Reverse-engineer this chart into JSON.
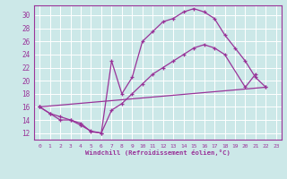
{
  "bg_color": "#cce8e8",
  "grid_color": "#ffffff",
  "line_color": "#993399",
  "xlabel": "Windchill (Refroidissement éolien,°C)",
  "xlim": [
    -0.5,
    23.5
  ],
  "ylim": [
    11.0,
    31.5
  ],
  "yticks": [
    12,
    14,
    16,
    18,
    20,
    22,
    24,
    26,
    28,
    30
  ],
  "xticks": [
    0,
    1,
    2,
    3,
    4,
    5,
    6,
    7,
    8,
    9,
    10,
    11,
    12,
    13,
    14,
    15,
    16,
    17,
    18,
    19,
    20,
    21,
    22,
    23
  ],
  "curve1_x": [
    0,
    1,
    2,
    3,
    4,
    5,
    6,
    7,
    8,
    9,
    10,
    11,
    12,
    13,
    14,
    15,
    16,
    17,
    18,
    19,
    20,
    21,
    22
  ],
  "curve1_y": [
    16,
    15,
    14,
    14,
    13.5,
    12.2,
    12.0,
    23.0,
    18.0,
    20.5,
    26.0,
    27.5,
    29.0,
    29.5,
    30.5,
    31.0,
    30.5,
    29.5,
    27.0,
    25.0,
    23.0,
    20.5,
    19.0
  ],
  "curve2_x": [
    0,
    22
  ],
  "curve2_y": [
    16.0,
    19.0
  ],
  "curve3_x": [
    0,
    1,
    2,
    3,
    4,
    5,
    6,
    7,
    8,
    9,
    10,
    11,
    12,
    13,
    14,
    15,
    16,
    17,
    18,
    20,
    21
  ],
  "curve3_y": [
    16,
    15,
    14.5,
    14.0,
    13.2,
    12.3,
    12.0,
    15.5,
    16.5,
    18.0,
    19.5,
    21.0,
    22.0,
    23.0,
    24.0,
    25.0,
    25.5,
    25.0,
    24.0,
    19.0,
    21.0
  ]
}
